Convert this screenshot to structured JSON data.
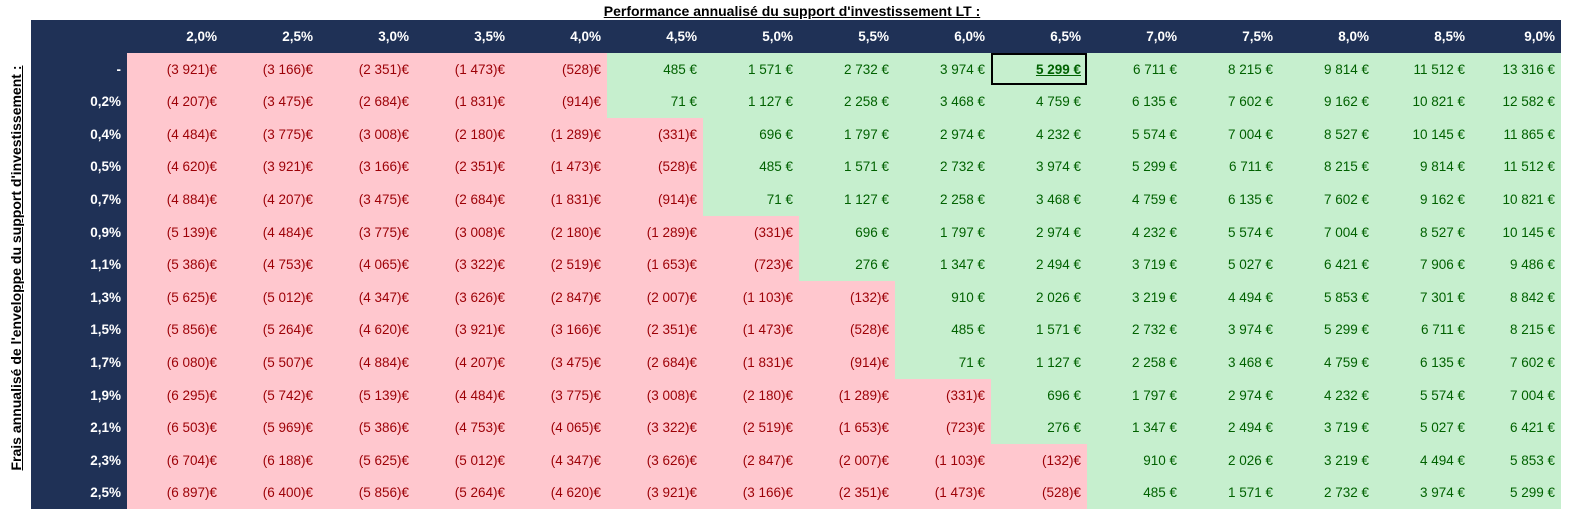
{
  "title": "Performance annualisé du support d'investissement LT :",
  "row_axis_label": "Frais annualisé de l'enveloppe du support d'investissement :",
  "column_headers": [
    "2,0%",
    "2,5%",
    "3,0%",
    "3,5%",
    "4,0%",
    "4,5%",
    "5,0%",
    "5,5%",
    "6,0%",
    "6,5%",
    "7,0%",
    "7,5%",
    "8,0%",
    "8,5%",
    "9,0%"
  ],
  "selected_cell": {
    "row": 0,
    "col": 9
  },
  "colors": {
    "header_bg": "#1f3156",
    "header_text": "#ffffff",
    "positive_bg": "#c6efce",
    "positive_text": "#006100",
    "negative_bg": "#ffc7ce",
    "negative_text": "#9c0006"
  },
  "rows": [
    {
      "label": "-",
      "values": [
        "(3 921)€",
        "(3 166)€",
        "(2 351)€",
        "(1 473)€",
        "(528)€",
        "485 €",
        "1 571 €",
        "2 732 €",
        "3 974 €",
        "5 299 €",
        "6 711 €",
        "8 215 €",
        "9 814 €",
        "11 512 €",
        "13 316 €"
      ]
    },
    {
      "label": "0,2%",
      "values": [
        "(4 207)€",
        "(3 475)€",
        "(2 684)€",
        "(1 831)€",
        "(914)€",
        "71 €",
        "1 127 €",
        "2 258 €",
        "3 468 €",
        "4 759 €",
        "6 135 €",
        "7 602 €",
        "9 162 €",
        "10 821 €",
        "12 582 €"
      ]
    },
    {
      "label": "0,4%",
      "values": [
        "(4 484)€",
        "(3 775)€",
        "(3 008)€",
        "(2 180)€",
        "(1 289)€",
        "(331)€",
        "696 €",
        "1 797 €",
        "2 974 €",
        "4 232 €",
        "5 574 €",
        "7 004 €",
        "8 527 €",
        "10 145 €",
        "11 865 €"
      ]
    },
    {
      "label": "0,5%",
      "values": [
        "(4 620)€",
        "(3 921)€",
        "(3 166)€",
        "(2 351)€",
        "(1 473)€",
        "(528)€",
        "485 €",
        "1 571 €",
        "2 732 €",
        "3 974 €",
        "5 299 €",
        "6 711 €",
        "8 215 €",
        "9 814 €",
        "11 512 €"
      ]
    },
    {
      "label": "0,7%",
      "values": [
        "(4 884)€",
        "(4 207)€",
        "(3 475)€",
        "(2 684)€",
        "(1 831)€",
        "(914)€",
        "71 €",
        "1 127 €",
        "2 258 €",
        "3 468 €",
        "4 759 €",
        "6 135 €",
        "7 602 €",
        "9 162 €",
        "10 821 €"
      ]
    },
    {
      "label": "0,9%",
      "values": [
        "(5 139)€",
        "(4 484)€",
        "(3 775)€",
        "(3 008)€",
        "(2 180)€",
        "(1 289)€",
        "(331)€",
        "696 €",
        "1 797 €",
        "2 974 €",
        "4 232 €",
        "5 574 €",
        "7 004 €",
        "8 527 €",
        "10 145 €"
      ]
    },
    {
      "label": "1,1%",
      "values": [
        "(5 386)€",
        "(4 753)€",
        "(4 065)€",
        "(3 322)€",
        "(2 519)€",
        "(1 653)€",
        "(723)€",
        "276 €",
        "1 347 €",
        "2 494 €",
        "3 719 €",
        "5 027 €",
        "6 421 €",
        "7 906 €",
        "9 486 €"
      ]
    },
    {
      "label": "1,3%",
      "values": [
        "(5 625)€",
        "(5 012)€",
        "(4 347)€",
        "(3 626)€",
        "(2 847)€",
        "(2 007)€",
        "(1 103)€",
        "(132)€",
        "910 €",
        "2 026 €",
        "3 219 €",
        "4 494 €",
        "5 853 €",
        "7 301 €",
        "8 842 €"
      ]
    },
    {
      "label": "1,5%",
      "values": [
        "(5 856)€",
        "(5 264)€",
        "(4 620)€",
        "(3 921)€",
        "(3 166)€",
        "(2 351)€",
        "(1 473)€",
        "(528)€",
        "485 €",
        "1 571 €",
        "2 732 €",
        "3 974 €",
        "5 299 €",
        "6 711 €",
        "8 215 €"
      ]
    },
    {
      "label": "1,7%",
      "values": [
        "(6 080)€",
        "(5 507)€",
        "(4 884)€",
        "(4 207)€",
        "(3 475)€",
        "(2 684)€",
        "(1 831)€",
        "(914)€",
        "71 €",
        "1 127 €",
        "2 258 €",
        "3 468 €",
        "4 759 €",
        "6 135 €",
        "7 602 €"
      ]
    },
    {
      "label": "1,9%",
      "values": [
        "(6 295)€",
        "(5 742)€",
        "(5 139)€",
        "(4 484)€",
        "(3 775)€",
        "(3 008)€",
        "(2 180)€",
        "(1 289)€",
        "(331)€",
        "696 €",
        "1 797 €",
        "2 974 €",
        "4 232 €",
        "5 574 €",
        "7 004 €"
      ]
    },
    {
      "label": "2,1%",
      "values": [
        "(6 503)€",
        "(5 969)€",
        "(5 386)€",
        "(4 753)€",
        "(4 065)€",
        "(3 322)€",
        "(2 519)€",
        "(1 653)€",
        "(723)€",
        "276 €",
        "1 347 €",
        "2 494 €",
        "3 719 €",
        "5 027 €",
        "6 421 €"
      ]
    },
    {
      "label": "2,3%",
      "values": [
        "(6 704)€",
        "(6 188)€",
        "(5 625)€",
        "(5 012)€",
        "(4 347)€",
        "(3 626)€",
        "(2 847)€",
        "(2 007)€",
        "(1 103)€",
        "(132)€",
        "910 €",
        "2 026 €",
        "3 219 €",
        "4 494 €",
        "5 853 €"
      ]
    },
    {
      "label": "2,5%",
      "values": [
        "(6 897)€",
        "(6 400)€",
        "(5 856)€",
        "(5 264)€",
        "(4 620)€",
        "(3 921)€",
        "(3 166)€",
        "(2 351)€",
        "(1 473)€",
        "(528)€",
        "485 €",
        "1 571 €",
        "2 732 €",
        "3 974 €",
        "5 299 €"
      ]
    }
  ]
}
